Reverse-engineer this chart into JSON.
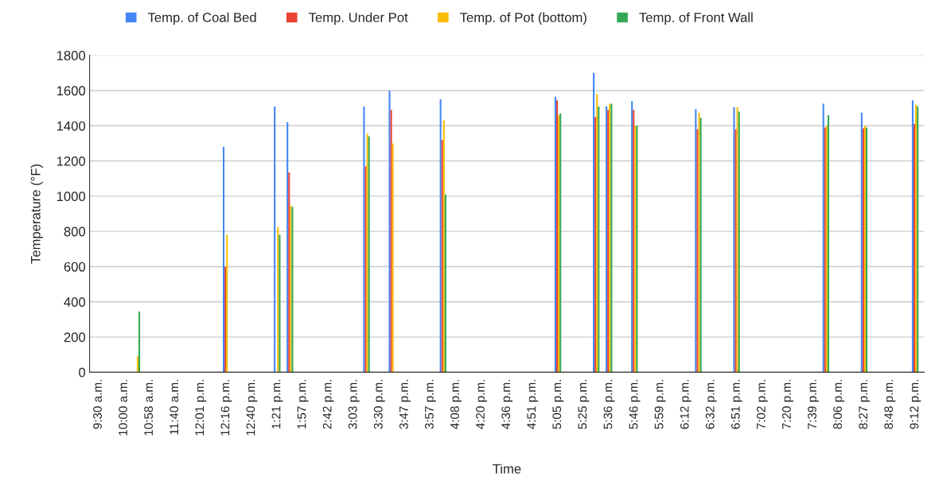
{
  "chart_data": {
    "type": "bar",
    "xlabel": "Time",
    "ylabel": "Temperature (°F)",
    "categories": [
      "9:30 a.m.",
      null,
      "10:00 a.m.",
      null,
      "10:58 a.m.",
      null,
      "11:40 a.m.",
      null,
      "12:01 p.m.",
      null,
      "12:16 p.m.",
      null,
      "12:40 p.m.",
      null,
      "1:21 p.m.",
      null,
      "1:57 p.m.",
      null,
      "2:42 p.m.",
      null,
      "3:03 p.m.",
      null,
      "3:30 p.m.",
      null,
      "3:47 p.m.",
      null,
      "3:57 p.m.",
      null,
      "4:08 p.m.",
      null,
      "4:20 p.m.",
      null,
      "4:36 p.m.",
      null,
      "4:51 p.m.",
      null,
      "5:05 p.m.",
      null,
      "5:25 p.m.",
      null,
      "5:36 p.m.",
      null,
      "5:46 p.m.",
      null,
      "5:59 p.m.",
      null,
      "6:12 p.m.",
      null,
      "6:32 p.m.",
      null,
      "6:51 p.m.",
      null,
      "7:02 p.m.",
      null,
      "7:20 p.m.",
      null,
      "7:39 p.m.",
      null,
      "8:06 p.m.",
      null,
      "8:27 p.m.",
      null,
      "8:48 p.m.",
      null,
      "9:12 p.m."
    ],
    "series": [
      {
        "name": "Temp. of Coal Bed",
        "color": "#4285f4",
        "values": [
          null,
          null,
          null,
          null,
          null,
          null,
          null,
          null,
          null,
          null,
          1280,
          null,
          null,
          null,
          1510,
          1420,
          null,
          null,
          null,
          null,
          null,
          1510,
          null,
          1600,
          null,
          null,
          null,
          1550,
          null,
          null,
          null,
          null,
          null,
          null,
          null,
          null,
          1565,
          null,
          null,
          1700,
          1510,
          null,
          1540,
          null,
          null,
          null,
          null,
          1495,
          null,
          null,
          1505,
          null,
          null,
          null,
          null,
          null,
          null,
          1525,
          null,
          null,
          1475,
          null,
          null,
          null,
          1545
        ]
      },
      {
        "name": "Temp. Under Pot",
        "color": "#ea4335",
        "values": [
          null,
          null,
          null,
          null,
          null,
          null,
          null,
          null,
          null,
          null,
          600,
          null,
          null,
          null,
          null,
          1135,
          null,
          null,
          null,
          null,
          null,
          1170,
          null,
          1490,
          null,
          null,
          null,
          1320,
          null,
          null,
          null,
          null,
          null,
          null,
          null,
          null,
          1545,
          null,
          null,
          1450,
          1490,
          null,
          1490,
          null,
          null,
          null,
          null,
          1380,
          null,
          null,
          1380,
          null,
          null,
          null,
          null,
          null,
          null,
          1390,
          null,
          null,
          1385,
          null,
          null,
          null,
          1410
        ]
      },
      {
        "name": "Temp. of Pot (bottom)",
        "color": "#fbbc04",
        "values": [
          null,
          null,
          null,
          90,
          null,
          null,
          null,
          null,
          null,
          null,
          780,
          null,
          null,
          null,
          825,
          945,
          null,
          null,
          null,
          null,
          null,
          1355,
          null,
          1300,
          null,
          null,
          null,
          1430,
          null,
          null,
          null,
          null,
          null,
          null,
          null,
          null,
          1460,
          null,
          null,
          1580,
          1525,
          null,
          1400,
          null,
          null,
          null,
          null,
          1475,
          null,
          null,
          1505,
          null,
          null,
          null,
          null,
          null,
          null,
          1400,
          null,
          null,
          1400,
          null,
          null,
          null,
          1520
        ]
      },
      {
        "name": "Temp. of Front Wall",
        "color": "#34a853",
        "values": [
          null,
          null,
          null,
          345,
          null,
          null,
          null,
          null,
          null,
          null,
          null,
          null,
          null,
          null,
          780,
          940,
          null,
          null,
          null,
          null,
          null,
          1340,
          null,
          null,
          null,
          null,
          null,
          1010,
          null,
          null,
          null,
          null,
          null,
          null,
          null,
          null,
          1470,
          null,
          null,
          1510,
          1525,
          null,
          1400,
          null,
          null,
          null,
          null,
          1445,
          null,
          null,
          1480,
          null,
          null,
          null,
          null,
          null,
          null,
          1460,
          null,
          null,
          1390,
          null,
          null,
          null,
          1510
        ]
      }
    ],
    "ylim": [
      0,
      1800
    ],
    "yticks": [
      0,
      200,
      400,
      600,
      800,
      1000,
      1200,
      1400,
      1600,
      1800
    ],
    "grid": "y",
    "legend": "top"
  }
}
